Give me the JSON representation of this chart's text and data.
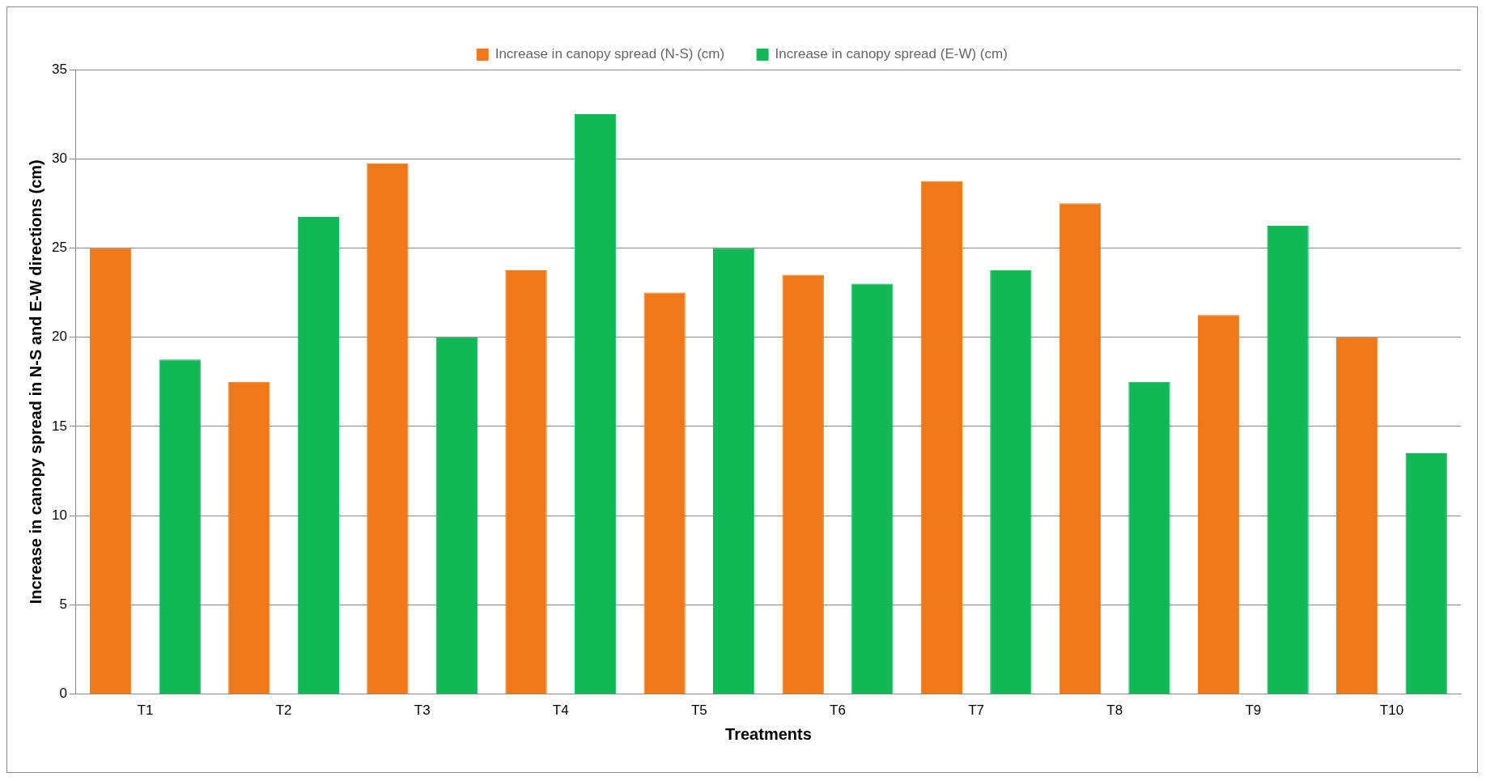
{
  "chart_data": {
    "type": "bar",
    "xlabel": "Treatments",
    "ylabel": "Increase in canopy spread in N-S and E-W directions (cm)",
    "categories": [
      "T1",
      "T2",
      "T3",
      "T4",
      "T5",
      "T6",
      "T7",
      "T8",
      "T9",
      "T10"
    ],
    "series": [
      {
        "name": "Increase in canopy spread (N-S) (cm)",
        "color": "#f07818",
        "values": [
          25,
          17.5,
          29.75,
          23.75,
          22.5,
          23.5,
          28.75,
          27.5,
          21.25,
          20
        ]
      },
      {
        "name": "Increase in canopy spread (E-W) (cm)",
        "color": "#10b858",
        "values": [
          18.75,
          26.75,
          20,
          32.5,
          25,
          23,
          23.75,
          17.5,
          26.25,
          13.5
        ]
      }
    ],
    "ylim": [
      0,
      35
    ],
    "yticks": [
      0,
      5,
      10,
      15,
      20,
      25,
      30,
      35
    ],
    "grid": "y",
    "legend": "top"
  }
}
